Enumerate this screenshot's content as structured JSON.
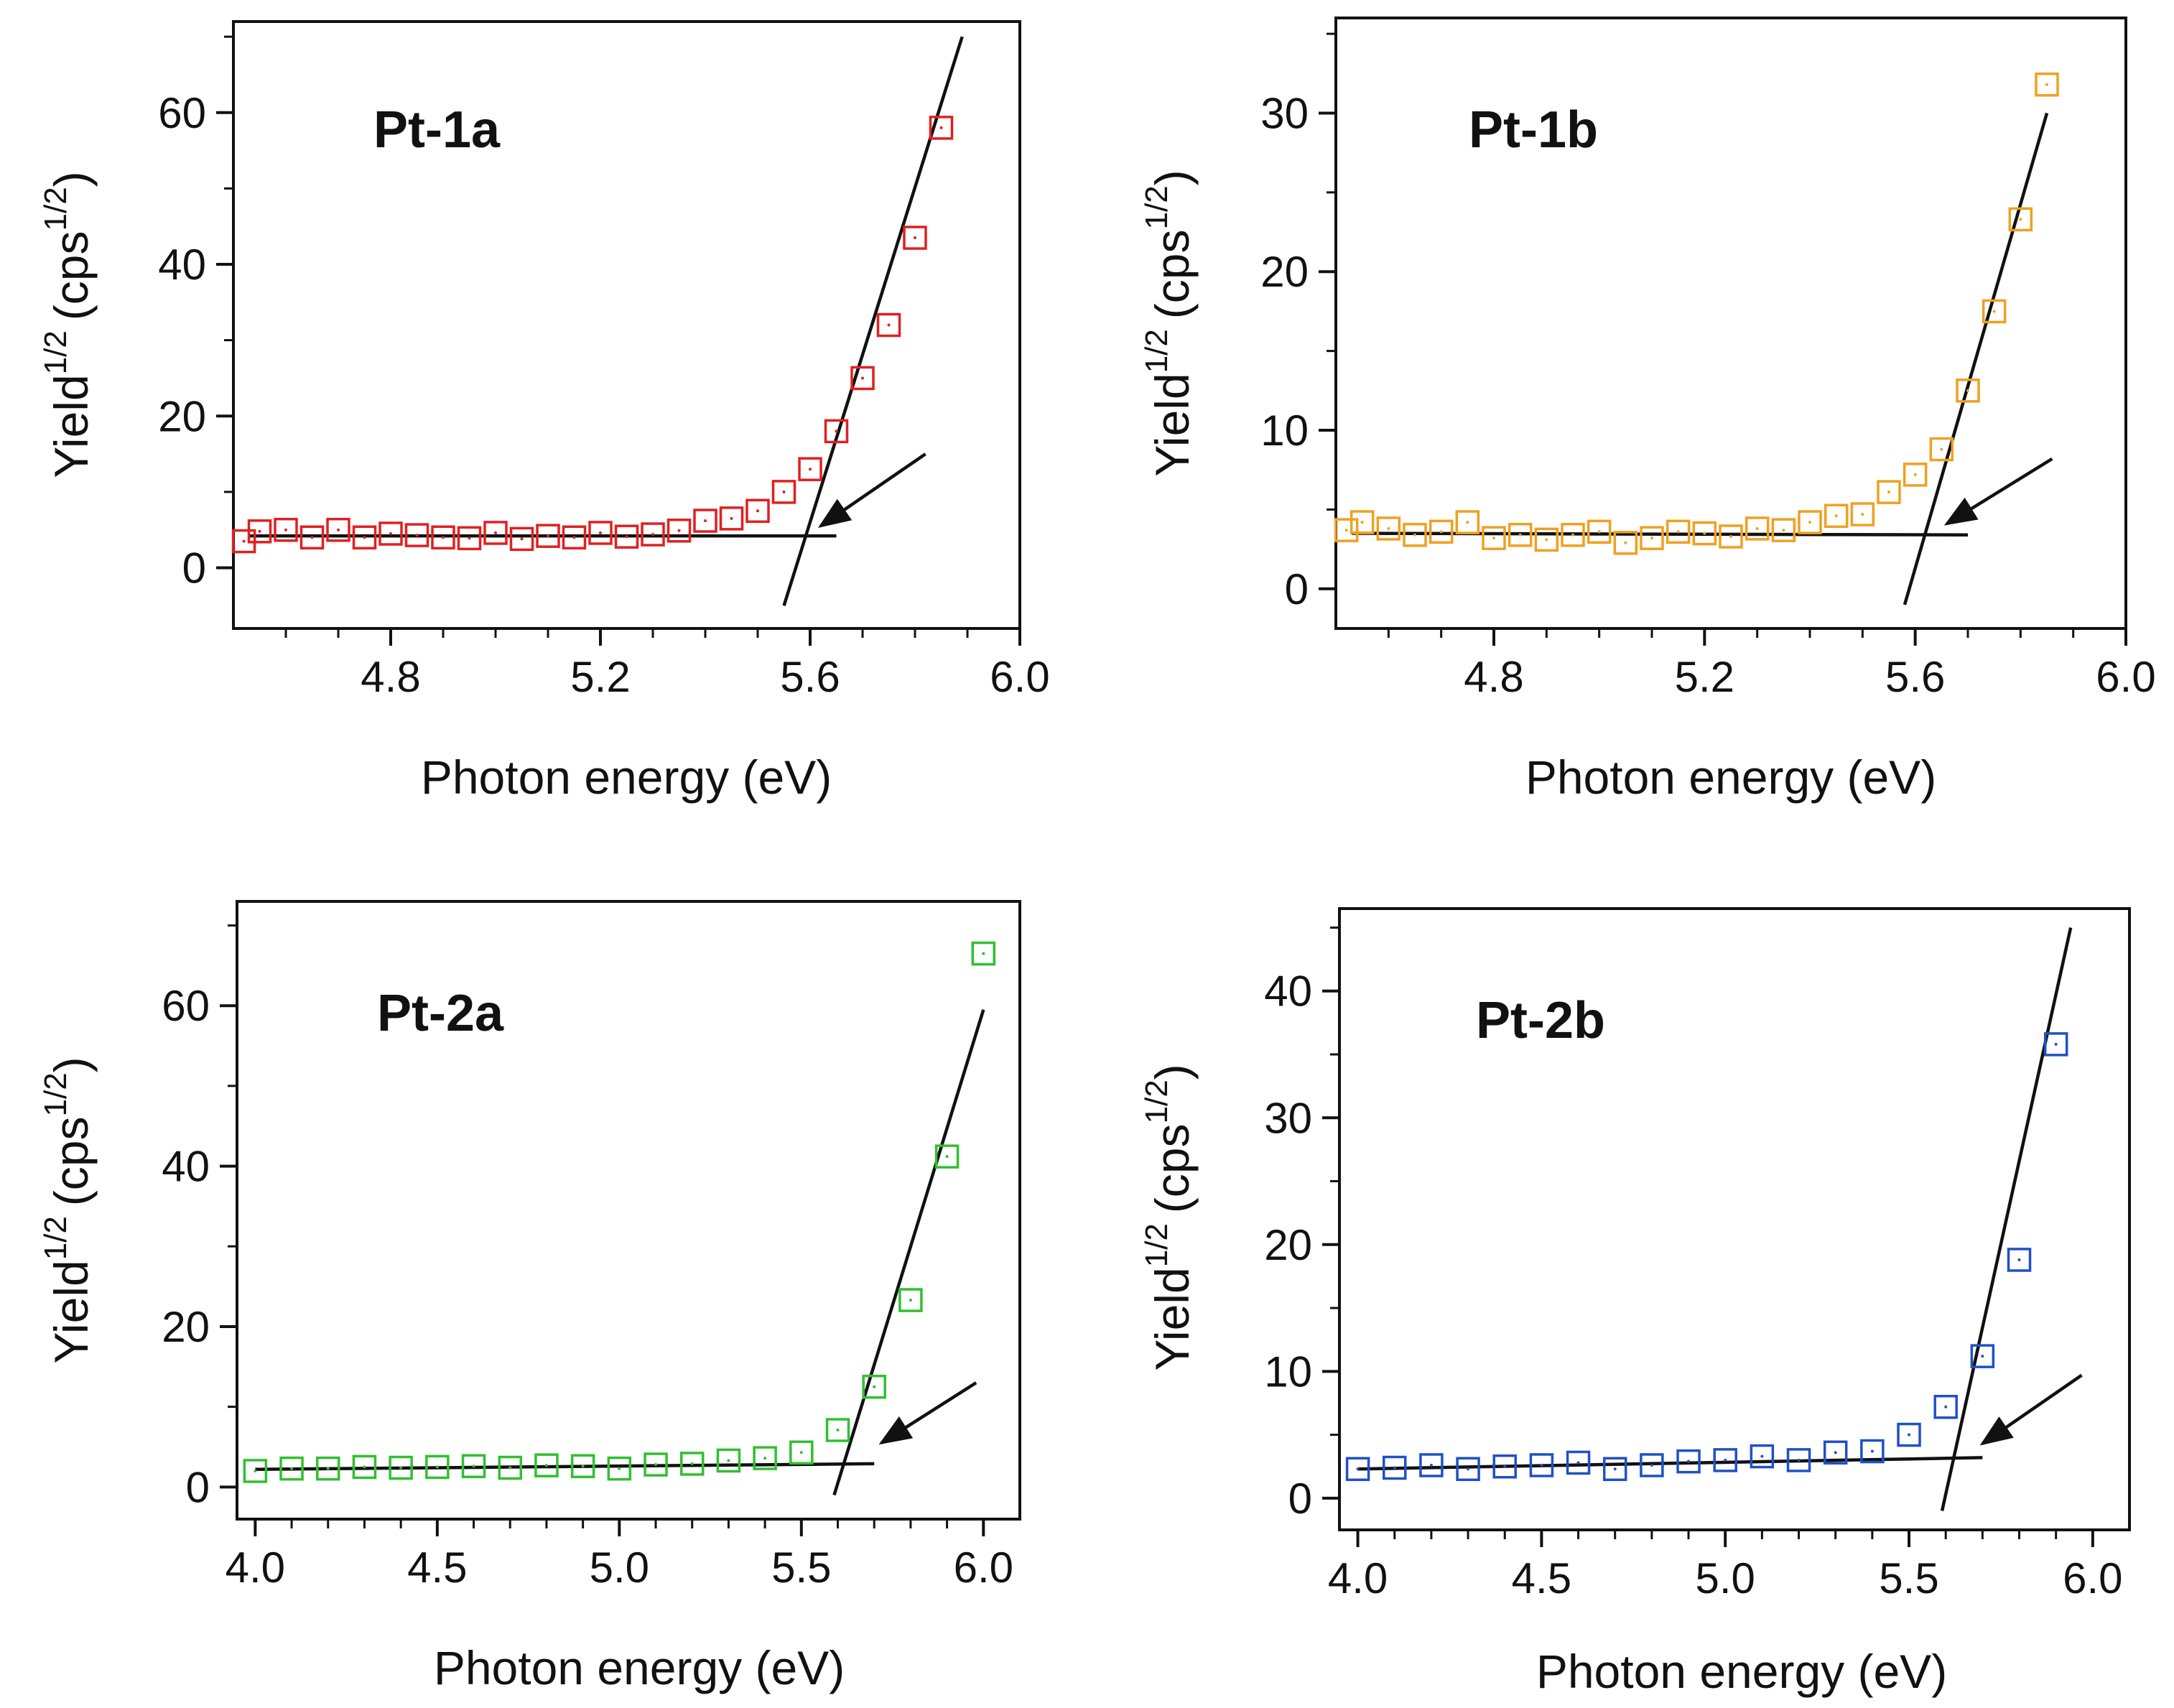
{
  "chart_data": [
    {
      "type": "scatter",
      "title": "Pt-1a",
      "xlabel": "Photon energy (eV)",
      "ylabel": "Yield",
      "ylabel_sup": "1/2",
      "ylabel_unit": "(cps",
      "ylabel_unit_sup": "1/2",
      "ylabel_close": ")",
      "xlim": [
        4.5,
        6.0
      ],
      "ylim": [
        -8,
        72
      ],
      "xticks": [
        4.8,
        5.2,
        5.6,
        6.0
      ],
      "xtick_labels": [
        "4.8",
        "5.2",
        "5.6",
        "6.0"
      ],
      "xminor": [
        4.6,
        4.7,
        4.9,
        5.0,
        5.1,
        5.3,
        5.4,
        5.5,
        5.7,
        5.8,
        5.9
      ],
      "yticks": [
        0,
        20,
        40,
        60
      ],
      "ytick_labels": [
        "0",
        "20",
        "40",
        "60"
      ],
      "yminor": [
        10,
        30,
        50,
        70
      ],
      "color": "#e02020",
      "x": [
        4.52,
        4.55,
        4.6,
        4.65,
        4.7,
        4.75,
        4.8,
        4.85,
        4.9,
        4.95,
        5.0,
        5.05,
        5.1,
        5.15,
        5.2,
        5.25,
        5.3,
        5.35,
        5.4,
        5.45,
        5.5,
        5.55,
        5.6,
        5.65,
        5.7,
        5.75,
        5.8,
        5.85
      ],
      "y": [
        3.5,
        4.8,
        5.0,
        4.0,
        5.0,
        4.0,
        4.5,
        4.3,
        4.0,
        3.9,
        4.6,
        3.8,
        4.2,
        4.0,
        4.6,
        4.1,
        4.4,
        4.9,
        6.2,
        6.5,
        7.5,
        10.0,
        13.0,
        18.0,
        25.0,
        32.0,
        43.5,
        58.0
      ],
      "fit_lines": [
        {
          "x": [
            4.53,
            5.65
          ],
          "y": [
            4.2,
            4.2
          ]
        },
        {
          "x": [
            5.55,
            5.89
          ],
          "y": [
            -5,
            70
          ]
        }
      ],
      "arrow": {
        "from": [
          5.82,
          15.0
        ],
        "to": [
          5.62,
          5.5
        ]
      }
    },
    {
      "type": "scatter",
      "title": "Pt-1b",
      "xlabel": "Photon energy (eV)",
      "ylabel": "Yield",
      "ylabel_sup": "1/2",
      "ylabel_unit": "(cps",
      "ylabel_unit_sup": "1/2",
      "ylabel_close": ")",
      "xlim": [
        4.5,
        6.0
      ],
      "ylim": [
        -2.5,
        36
      ],
      "xticks": [
        4.8,
        5.2,
        5.6,
        6.0
      ],
      "xtick_labels": [
        "4.8",
        "5.2",
        "5.6",
        "6.0"
      ],
      "xminor": [
        4.6,
        4.7,
        4.9,
        5.0,
        5.1,
        5.3,
        5.4,
        5.5,
        5.7,
        5.8,
        5.9
      ],
      "yticks": [
        0,
        10,
        20,
        30
      ],
      "ytick_labels": [
        "0",
        "10",
        "20",
        "30"
      ],
      "yminor": [
        5,
        15,
        25,
        35
      ],
      "color": "#f0a020",
      "x": [
        4.52,
        4.55,
        4.6,
        4.65,
        4.7,
        4.75,
        4.8,
        4.85,
        4.9,
        4.95,
        5.0,
        5.05,
        5.1,
        5.15,
        5.2,
        5.25,
        5.3,
        5.35,
        5.4,
        5.45,
        5.5,
        5.55,
        5.6,
        5.65,
        5.7,
        5.75,
        5.8,
        5.85
      ],
      "y": [
        3.7,
        4.2,
        3.8,
        3.4,
        3.6,
        4.2,
        3.2,
        3.4,
        3.1,
        3.4,
        3.6,
        2.9,
        3.2,
        3.6,
        3.5,
        3.3,
        3.8,
        3.7,
        4.2,
        4.6,
        4.7,
        6.1,
        7.2,
        8.8,
        12.5,
        17.5,
        23.3,
        31.8
      ],
      "fit_lines": [
        {
          "x": [
            4.53,
            5.7
          ],
          "y": [
            3.5,
            3.4
          ]
        },
        {
          "x": [
            5.58,
            5.85
          ],
          "y": [
            -1,
            30
          ]
        }
      ],
      "arrow": {
        "from": [
          5.86,
          8.2
        ],
        "to": [
          5.66,
          4.1
        ]
      }
    },
    {
      "type": "scatter",
      "title": "Pt-2a",
      "xlabel": "Photon energy (eV)",
      "ylabel": "Yield",
      "ylabel_sup": "1/2",
      "ylabel_unit": "(cps",
      "ylabel_unit_sup": "1/2",
      "ylabel_close": ")",
      "xlim": [
        3.95,
        6.1
      ],
      "ylim": [
        -4,
        73
      ],
      "xticks": [
        4.0,
        4.5,
        5.0,
        5.5,
        6.0
      ],
      "xtick_labels": [
        "4.0",
        "4.5",
        "5.0",
        "5.5",
        "6.0"
      ],
      "xminor": [
        4.1,
        4.2,
        4.3,
        4.4,
        4.6,
        4.7,
        4.8,
        4.9,
        5.1,
        5.2,
        5.3,
        5.4,
        5.6,
        5.7,
        5.8,
        5.9
      ],
      "yticks": [
        0,
        20,
        40,
        60
      ],
      "ytick_labels": [
        "0",
        "20",
        "40",
        "60"
      ],
      "yminor": [
        10,
        30,
        50,
        70
      ],
      "color": "#30c030",
      "x": [
        4.0,
        4.1,
        4.2,
        4.3,
        4.4,
        4.5,
        4.6,
        4.7,
        4.8,
        4.9,
        5.0,
        5.1,
        5.2,
        5.3,
        5.4,
        5.5,
        5.6,
        5.7,
        5.8,
        5.9,
        6.0
      ],
      "y": [
        2.0,
        2.3,
        2.3,
        2.5,
        2.4,
        2.5,
        2.6,
        2.4,
        2.7,
        2.6,
        2.3,
        2.8,
        2.9,
        3.3,
        3.6,
        4.3,
        7.1,
        12.5,
        23.3,
        41.2,
        66.5
      ],
      "fit_lines": [
        {
          "x": [
            4.0,
            5.7
          ],
          "y": [
            2.2,
            2.9
          ]
        },
        {
          "x": [
            5.59,
            6.0
          ],
          "y": [
            -1,
            59.5
          ]
        }
      ],
      "arrow": {
        "from": [
          5.98,
          13.0
        ],
        "to": [
          5.72,
          5.5
        ]
      }
    },
    {
      "type": "scatter",
      "title": "Pt-2b",
      "xlabel": "Photon energy (eV)",
      "ylabel": "Yield",
      "ylabel_sup": "1/2",
      "ylabel_unit": "(cps",
      "ylabel_unit_sup": "1/2",
      "ylabel_close": ")",
      "xlim": [
        3.95,
        6.1
      ],
      "ylim": [
        -2.5,
        46.5
      ],
      "xticks": [
        4.0,
        4.5,
        5.0,
        5.5,
        6.0
      ],
      "xtick_labels": [
        "4.0",
        "4.5",
        "5.0",
        "5.5",
        "6.0"
      ],
      "xminor": [
        4.1,
        4.2,
        4.3,
        4.4,
        4.6,
        4.7,
        4.8,
        4.9,
        5.1,
        5.2,
        5.3,
        5.4,
        5.6,
        5.7,
        5.8,
        5.9
      ],
      "yticks": [
        0,
        10,
        20,
        30,
        40
      ],
      "ytick_labels": [
        "0",
        "10",
        "20",
        "30",
        "40"
      ],
      "yminor": [
        5,
        15,
        25,
        35,
        45
      ],
      "color": "#2050c8",
      "x": [
        4.0,
        4.1,
        4.2,
        4.3,
        4.4,
        4.5,
        4.6,
        4.7,
        4.8,
        4.9,
        5.0,
        5.1,
        5.2,
        5.3,
        5.4,
        5.5,
        5.6,
        5.7,
        5.8,
        5.9
      ],
      "y": [
        2.3,
        2.4,
        2.6,
        2.3,
        2.5,
        2.6,
        2.8,
        2.3,
        2.6,
        2.9,
        3.0,
        3.3,
        3.0,
        3.6,
        3.7,
        5.0,
        7.2,
        11.2,
        18.8,
        35.8
      ],
      "fit_lines": [
        {
          "x": [
            4.0,
            5.7
          ],
          "y": [
            2.3,
            3.2
          ]
        },
        {
          "x": [
            5.59,
            5.94
          ],
          "y": [
            -1,
            45
          ]
        }
      ],
      "arrow": {
        "from": [
          5.97,
          9.7
        ],
        "to": [
          5.7,
          4.3
        ]
      }
    }
  ]
}
